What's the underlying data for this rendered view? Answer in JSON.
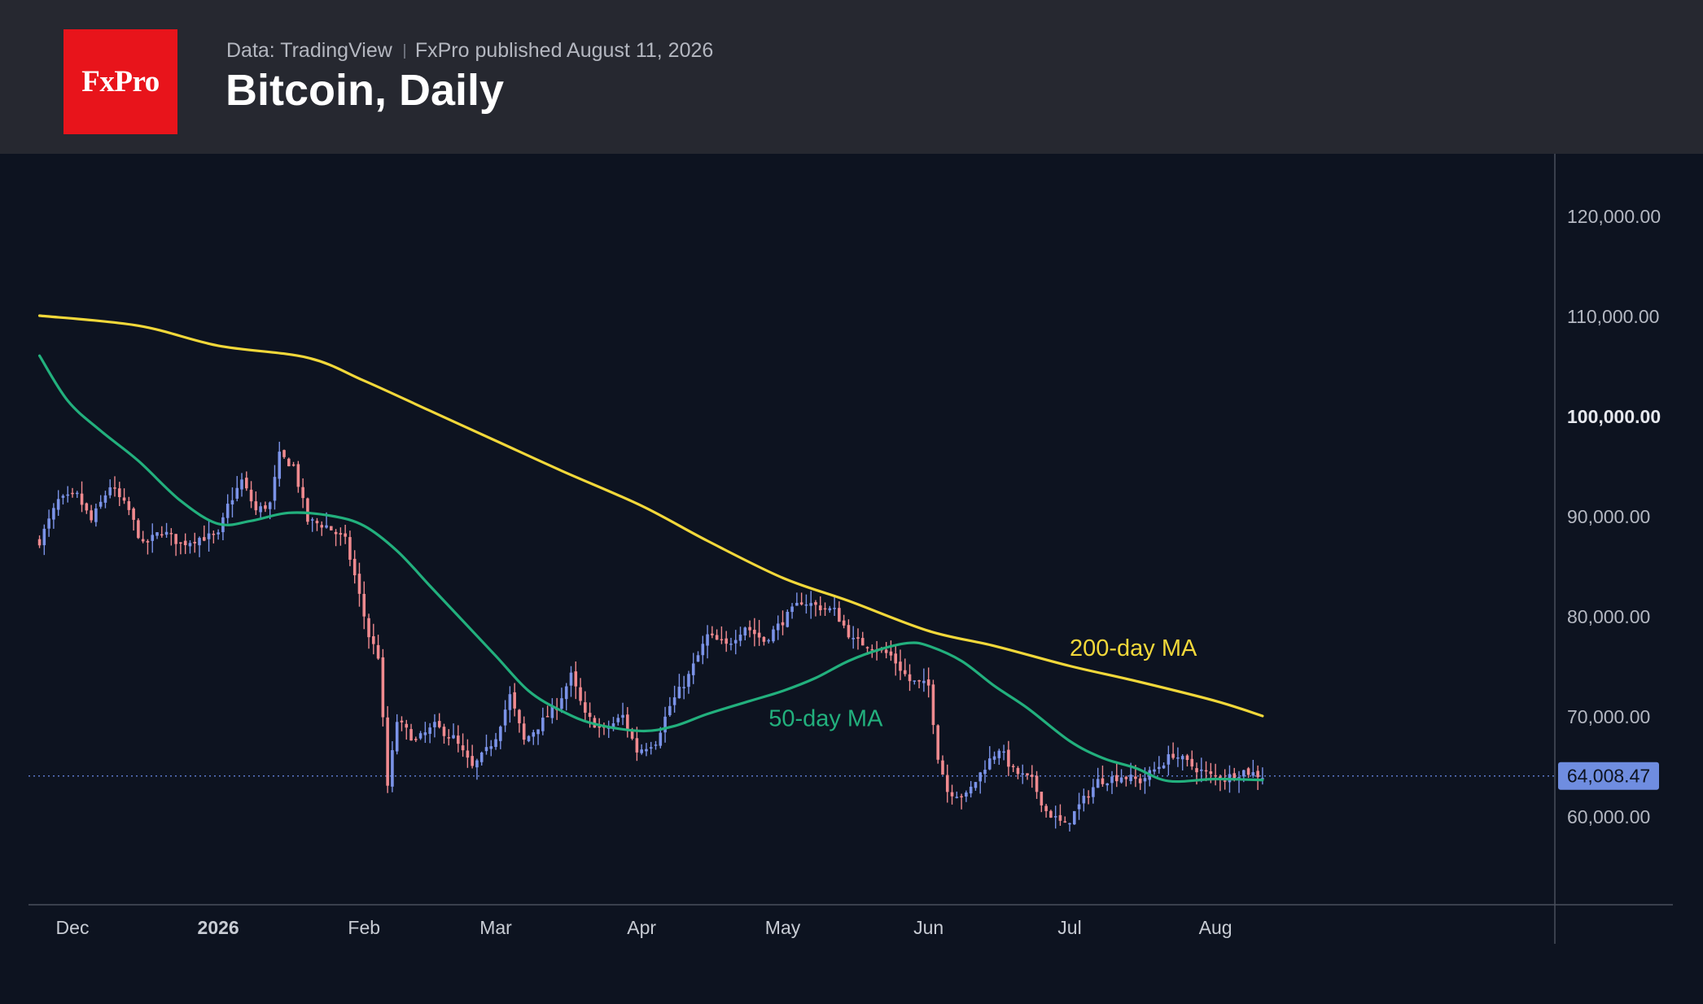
{
  "header": {
    "logo_text": "FxPro",
    "source": "Data: TradingView",
    "published": "FxPro published August 11, 2026",
    "title": "Bitcoin, Daily"
  },
  "colors": {
    "background": "#0d1320",
    "header_bg": "#262830",
    "logo_bg": "#e8141b",
    "up_candle": "#7b93e8",
    "down_candle": "#f08a8f",
    "ma200": "#f2d83a",
    "ma50": "#22b07d",
    "price_label_bg": "#6f8de0"
  },
  "chart_data": {
    "type": "candlestick",
    "title": "Bitcoin, Daily",
    "x_ticks": [
      {
        "label": "Dec",
        "date": "2025-12-01"
      },
      {
        "label": "2026",
        "date": "2026-01-01",
        "bold": true
      },
      {
        "label": "Feb",
        "date": "2026-02-01"
      },
      {
        "label": "Mar",
        "date": "2026-03-01"
      },
      {
        "label": "Apr",
        "date": "2026-04-01"
      },
      {
        "label": "May",
        "date": "2026-05-01"
      },
      {
        "label": "Jun",
        "date": "2026-06-01"
      },
      {
        "label": "Jul",
        "date": "2026-07-01"
      },
      {
        "label": "Aug",
        "date": "2026-08-01"
      }
    ],
    "y_ticks": [
      {
        "label": "120,000.00",
        "value": 120000
      },
      {
        "label": "110,000.00",
        "value": 110000
      },
      {
        "label": "100,000.00",
        "value": 100000,
        "bold": true
      },
      {
        "label": "90,000.00",
        "value": 90000
      },
      {
        "label": "80,000.00",
        "value": 80000
      },
      {
        "label": "70,000.00",
        "value": 70000
      },
      {
        "label": "60,000.00",
        "value": 60000
      }
    ],
    "ylim": [
      52000,
      125000
    ],
    "last_price": 64008.47,
    "last_price_label": "64,008.47",
    "close_path": [
      [
        "2025-11-24",
        87500
      ],
      [
        "2025-11-28",
        91500
      ],
      [
        "2025-12-02",
        92000
      ],
      [
        "2025-12-05",
        89500
      ],
      [
        "2025-12-09",
        93000
      ],
      [
        "2025-12-13",
        90500
      ],
      [
        "2025-12-16",
        87000
      ],
      [
        "2025-12-20",
        88500
      ],
      [
        "2025-12-24",
        87200
      ],
      [
        "2025-12-28",
        87800
      ],
      [
        "2026-01-01",
        88000
      ],
      [
        "2026-01-03",
        91000
      ],
      [
        "2026-01-06",
        93500
      ],
      [
        "2026-01-09",
        90500
      ],
      [
        "2026-01-12",
        91200
      ],
      [
        "2026-01-14",
        96000
      ],
      [
        "2026-01-17",
        95000
      ],
      [
        "2026-01-20",
        89500
      ],
      [
        "2026-01-24",
        89000
      ],
      [
        "2026-01-28",
        87500
      ],
      [
        "2026-01-30",
        84000
      ],
      [
        "2026-02-02",
        78000
      ],
      [
        "2026-02-04",
        76000
      ],
      [
        "2026-02-06",
        63000
      ],
      [
        "2026-02-08",
        69500
      ],
      [
        "2026-02-12",
        67500
      ],
      [
        "2026-02-16",
        69000
      ],
      [
        "2026-02-20",
        67800
      ],
      [
        "2026-02-24",
        64800
      ],
      [
        "2026-02-27",
        66500
      ],
      [
        "2026-03-01",
        68000
      ],
      [
        "2026-03-04",
        72000
      ],
      [
        "2026-03-07",
        67500
      ],
      [
        "2026-03-10",
        69000
      ],
      [
        "2026-03-14",
        71000
      ],
      [
        "2026-03-17",
        74000
      ],
      [
        "2026-03-20",
        70000
      ],
      [
        "2026-03-24",
        68500
      ],
      [
        "2026-03-28",
        70000
      ],
      [
        "2026-03-31",
        66500
      ],
      [
        "2026-04-04",
        67500
      ],
      [
        "2026-04-07",
        71000
      ],
      [
        "2026-04-11",
        74000
      ],
      [
        "2026-04-15",
        78000
      ],
      [
        "2026-04-19",
        77000
      ],
      [
        "2026-04-23",
        79000
      ],
      [
        "2026-04-27",
        77500
      ],
      [
        "2026-05-01",
        79500
      ],
      [
        "2026-05-05",
        81500
      ],
      [
        "2026-05-08",
        81000
      ],
      [
        "2026-05-12",
        80500
      ],
      [
        "2026-05-16",
        77500
      ],
      [
        "2026-05-20",
        77000
      ],
      [
        "2026-05-24",
        76000
      ],
      [
        "2026-05-28",
        73500
      ],
      [
        "2026-06-01",
        73000
      ],
      [
        "2026-06-03",
        66000
      ],
      [
        "2026-06-05",
        62500
      ],
      [
        "2026-06-09",
        62000
      ],
      [
        "2026-06-13",
        65000
      ],
      [
        "2026-06-16",
        66800
      ],
      [
        "2026-06-19",
        64500
      ],
      [
        "2026-06-23",
        63500
      ],
      [
        "2026-06-26",
        60500
      ],
      [
        "2026-06-30",
        59000
      ],
      [
        "2026-07-03",
        61000
      ],
      [
        "2026-07-07",
        63500
      ],
      [
        "2026-07-12",
        64000
      ],
      [
        "2026-07-16",
        63500
      ],
      [
        "2026-07-20",
        65000
      ],
      [
        "2026-07-23",
        66200
      ],
      [
        "2026-07-27",
        65000
      ],
      [
        "2026-07-31",
        64000
      ],
      [
        "2026-08-03",
        63800
      ],
      [
        "2026-08-07",
        64500
      ],
      [
        "2026-08-11",
        64008
      ]
    ],
    "series": [
      {
        "name": "200-day MA",
        "color": "#f2d83a",
        "points": [
          [
            "2025-11-24",
            110000
          ],
          [
            "2025-12-15",
            109000
          ],
          [
            "2026-01-01",
            107000
          ],
          [
            "2026-01-20",
            105800
          ],
          [
            "2026-02-01",
            103500
          ],
          [
            "2026-02-15",
            100500
          ],
          [
            "2026-03-01",
            97500
          ],
          [
            "2026-03-15",
            94500
          ],
          [
            "2026-04-01",
            91000
          ],
          [
            "2026-04-15",
            87500
          ],
          [
            "2026-05-01",
            83800
          ],
          [
            "2026-05-15",
            81500
          ],
          [
            "2026-06-01",
            78500
          ],
          [
            "2026-06-15",
            77000
          ],
          [
            "2026-07-01",
            75000
          ],
          [
            "2026-07-15",
            73500
          ],
          [
            "2026-08-01",
            71500
          ],
          [
            "2026-08-11",
            70000
          ]
        ]
      },
      {
        "name": "50-day MA",
        "color": "#22b07d",
        "points": [
          [
            "2025-11-24",
            106000
          ],
          [
            "2025-11-30",
            101500
          ],
          [
            "2025-12-07",
            98500
          ],
          [
            "2025-12-15",
            95500
          ],
          [
            "2025-12-24",
            91500
          ],
          [
            "2026-01-01",
            89200
          ],
          [
            "2026-01-08",
            89500
          ],
          [
            "2026-01-16",
            90300
          ],
          [
            "2026-01-25",
            90000
          ],
          [
            "2026-02-01",
            89000
          ],
          [
            "2026-02-08",
            86500
          ],
          [
            "2026-02-15",
            83000
          ],
          [
            "2026-02-22",
            79500
          ],
          [
            "2026-03-01",
            76000
          ],
          [
            "2026-03-08",
            72500
          ],
          [
            "2026-03-15",
            70500
          ],
          [
            "2026-03-22",
            69200
          ],
          [
            "2026-04-01",
            68500
          ],
          [
            "2026-04-08",
            69000
          ],
          [
            "2026-04-15",
            70200
          ],
          [
            "2026-04-24",
            71500
          ],
          [
            "2026-05-01",
            72500
          ],
          [
            "2026-05-08",
            73800
          ],
          [
            "2026-05-15",
            75500
          ],
          [
            "2026-05-22",
            76700
          ],
          [
            "2026-05-28",
            77300
          ],
          [
            "2026-06-01",
            77000
          ],
          [
            "2026-06-08",
            75500
          ],
          [
            "2026-06-15",
            73000
          ],
          [
            "2026-06-22",
            70800
          ],
          [
            "2026-07-01",
            67500
          ],
          [
            "2026-07-08",
            65800
          ],
          [
            "2026-07-15",
            64800
          ],
          [
            "2026-07-22",
            63500
          ],
          [
            "2026-08-01",
            63700
          ],
          [
            "2026-08-11",
            63600
          ]
        ]
      }
    ],
    "annotations": [
      {
        "text": "200-day MA",
        "color": "#f2d83a",
        "date": "2026-07-01",
        "value": 76000
      },
      {
        "text": "50-day MA",
        "color": "#22b07d",
        "date": "2026-04-28",
        "value": 69000
      }
    ],
    "grid": false
  }
}
